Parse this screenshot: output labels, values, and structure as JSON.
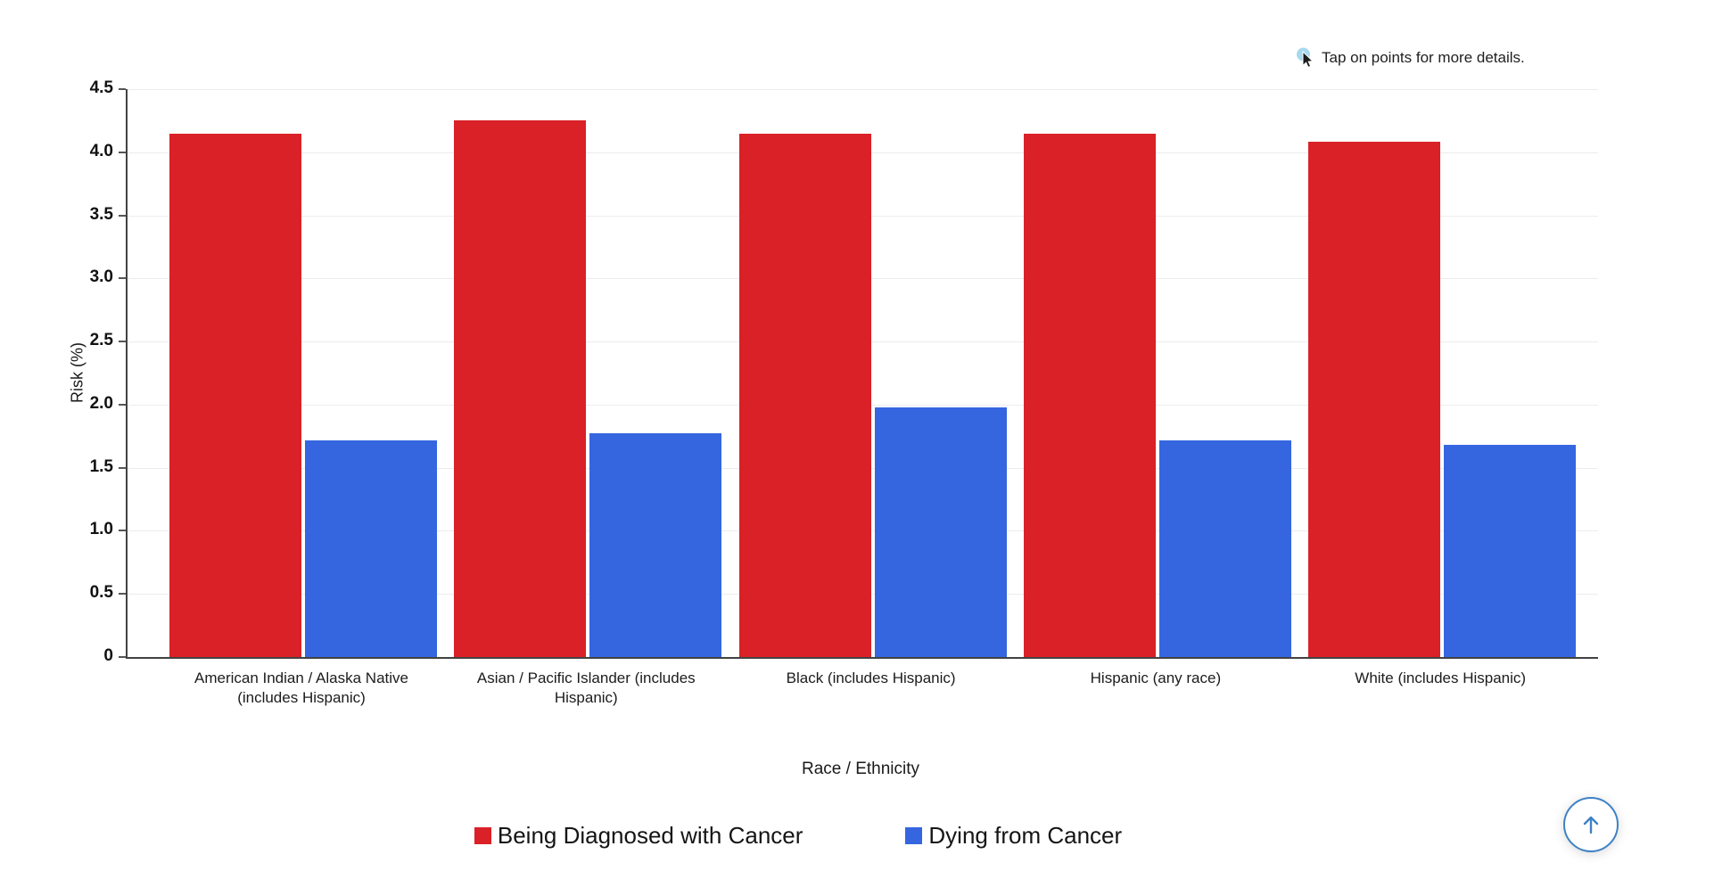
{
  "hint": {
    "text": "Tap on points for more details."
  },
  "chart_data": {
    "type": "bar",
    "title": "",
    "categories": [
      "American Indian / Alaska Native (includes Hispanic)",
      "Asian / Pacific Islander (includes Hispanic)",
      "Black (includes Hispanic)",
      "Hispanic (any race)",
      "White (includes Hispanic)"
    ],
    "series": [
      {
        "name": "Being Diagnosed with Cancer",
        "color": "#d92127",
        "values": [
          4.15,
          4.25,
          4.15,
          4.15,
          4.08
        ]
      },
      {
        "name": "Dying from Cancer",
        "color": "#3566e0",
        "values": [
          1.72,
          1.77,
          1.98,
          1.72,
          1.68
        ]
      }
    ],
    "xlabel": "Race / Ethnicity",
    "ylabel": "Risk (%)",
    "ylim": [
      0,
      4.5
    ],
    "ytick_step": 0.5,
    "ytick_labels": [
      "0",
      "0.5",
      "1.0",
      "1.5",
      "2.0",
      "2.5",
      "3.0",
      "3.5",
      "4.0",
      "4.5"
    ],
    "grid": true,
    "legend_position": "bottom"
  },
  "scroll_top_button": {
    "label": "scroll to top",
    "arrow": "up",
    "color": "#3e82c5"
  },
  "colors": {
    "axis": "#424242",
    "gridline": "#ececec",
    "hint_circle": "#a6d9ef",
    "text": "#212121"
  }
}
